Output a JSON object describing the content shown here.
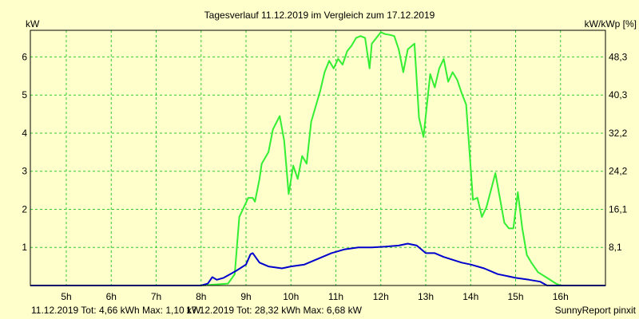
{
  "chart_data": {
    "type": "line",
    "title": "Tagesverlauf 11.12.2019 im Vergleich zum 17.12.2019",
    "ylabel_left": "kW",
    "ylabel_right": "kW/kWp [%]",
    "xlim": [
      4.2,
      17.0
    ],
    "ylim": [
      0,
      6.7
    ],
    "x_ticks": [
      {
        "value": 5,
        "label": "5h"
      },
      {
        "value": 6,
        "label": "6h"
      },
      {
        "value": 7,
        "label": "7h"
      },
      {
        "value": 8,
        "label": "8h"
      },
      {
        "value": 9,
        "label": "9h"
      },
      {
        "value": 10,
        "label": "10h"
      },
      {
        "value": 11,
        "label": "11h"
      },
      {
        "value": 12,
        "label": "12h"
      },
      {
        "value": 13,
        "label": "13h"
      },
      {
        "value": 14,
        "label": "14h"
      },
      {
        "value": 15,
        "label": "15h"
      },
      {
        "value": 16,
        "label": "16h"
      }
    ],
    "y_ticks_left": [
      {
        "value": 1,
        "label": "1"
      },
      {
        "value": 2,
        "label": "2"
      },
      {
        "value": 3,
        "label": "3"
      },
      {
        "value": 4,
        "label": "4"
      },
      {
        "value": 5,
        "label": "5"
      },
      {
        "value": 6,
        "label": "6"
      }
    ],
    "y_ticks_right": [
      {
        "value": 1.0,
        "label": "8,1"
      },
      {
        "value": 2.0,
        "label": "16,1"
      },
      {
        "value": 3.0,
        "label": "24,2"
      },
      {
        "value": 4.0,
        "label": "32,2"
      },
      {
        "value": 5.0,
        "label": "40,3"
      },
      {
        "value": 6.0,
        "label": "48,3"
      }
    ],
    "grid": true,
    "series": [
      {
        "name": "17.12.2019",
        "color": "#33ee33",
        "x": [
          4.2,
          8.0,
          8.25,
          8.6,
          8.75,
          8.85,
          8.95,
          9.05,
          9.15,
          9.2,
          9.3,
          9.35,
          9.5,
          9.6,
          9.75,
          9.85,
          9.95,
          10.05,
          10.15,
          10.25,
          10.35,
          10.45,
          10.55,
          10.65,
          10.75,
          10.85,
          10.95,
          11.05,
          11.15,
          11.25,
          11.35,
          11.45,
          11.55,
          11.65,
          11.75,
          11.8,
          11.9,
          12.0,
          12.1,
          12.2,
          12.3,
          12.4,
          12.5,
          12.6,
          12.75,
          12.85,
          12.95,
          13.1,
          13.2,
          13.3,
          13.4,
          13.5,
          13.6,
          13.7,
          13.8,
          13.9,
          14.05,
          14.15,
          14.25,
          14.35,
          14.45,
          14.55,
          14.65,
          14.75,
          14.85,
          14.95,
          15.05,
          15.15,
          15.25,
          15.35,
          15.5,
          15.7,
          15.9,
          16.0,
          16.1,
          17.0
        ],
        "values": [
          0,
          0,
          0.02,
          0.05,
          0.3,
          1.8,
          2.05,
          2.3,
          2.3,
          2.2,
          2.8,
          3.2,
          3.5,
          4.1,
          4.45,
          3.8,
          2.4,
          3.15,
          2.8,
          3.4,
          3.2,
          4.3,
          4.7,
          5.1,
          5.6,
          5.9,
          5.7,
          5.95,
          5.8,
          6.15,
          6.3,
          6.5,
          6.55,
          6.5,
          5.7,
          6.35,
          6.5,
          6.65,
          6.6,
          6.58,
          6.55,
          6.2,
          5.6,
          6.2,
          6.35,
          4.4,
          3.9,
          5.55,
          5.2,
          5.7,
          5.95,
          5.35,
          5.6,
          5.4,
          5.05,
          4.75,
          2.25,
          2.3,
          1.8,
          2.05,
          2.5,
          2.95,
          2.3,
          1.65,
          1.5,
          1.5,
          2.45,
          1.5,
          0.8,
          0.6,
          0.35,
          0.2,
          0.05,
          0.0,
          0.0,
          0.0
        ]
      },
      {
        "name": "11.12.2019",
        "color": "#0000cc",
        "x": [
          4.2,
          8.0,
          8.15,
          8.25,
          8.35,
          8.5,
          8.65,
          8.8,
          9.0,
          9.1,
          9.15,
          9.3,
          9.5,
          9.8,
          10.0,
          10.3,
          10.6,
          10.9,
          11.2,
          11.5,
          11.8,
          12.1,
          12.4,
          12.6,
          12.8,
          13.0,
          13.2,
          13.4,
          13.8,
          14.0,
          14.3,
          14.6,
          15.0,
          15.3,
          15.55,
          15.7,
          17.0
        ],
        "values": [
          0,
          0,
          0.05,
          0.22,
          0.15,
          0.2,
          0.3,
          0.4,
          0.55,
          0.82,
          0.85,
          0.6,
          0.5,
          0.45,
          0.5,
          0.55,
          0.7,
          0.85,
          0.95,
          1.0,
          1.0,
          1.02,
          1.05,
          1.1,
          1.05,
          0.85,
          0.85,
          0.75,
          0.6,
          0.55,
          0.45,
          0.3,
          0.2,
          0.15,
          0.1,
          0.0,
          0.0
        ]
      }
    ]
  },
  "footer": {
    "left": "11.12.2019 Tot: 4,66 kWh Max: 1,10 kW",
    "middle": "17.12.2019 Tot: 28,32 kWh Max: 6,68 kW",
    "right": "SunnyReport pinxit",
    "left_color": "#0000cc",
    "middle_color": "#33cc33",
    "right_color": "#000000"
  },
  "colors": {
    "background": "#ffffcc",
    "grid": "#33cc33"
  }
}
